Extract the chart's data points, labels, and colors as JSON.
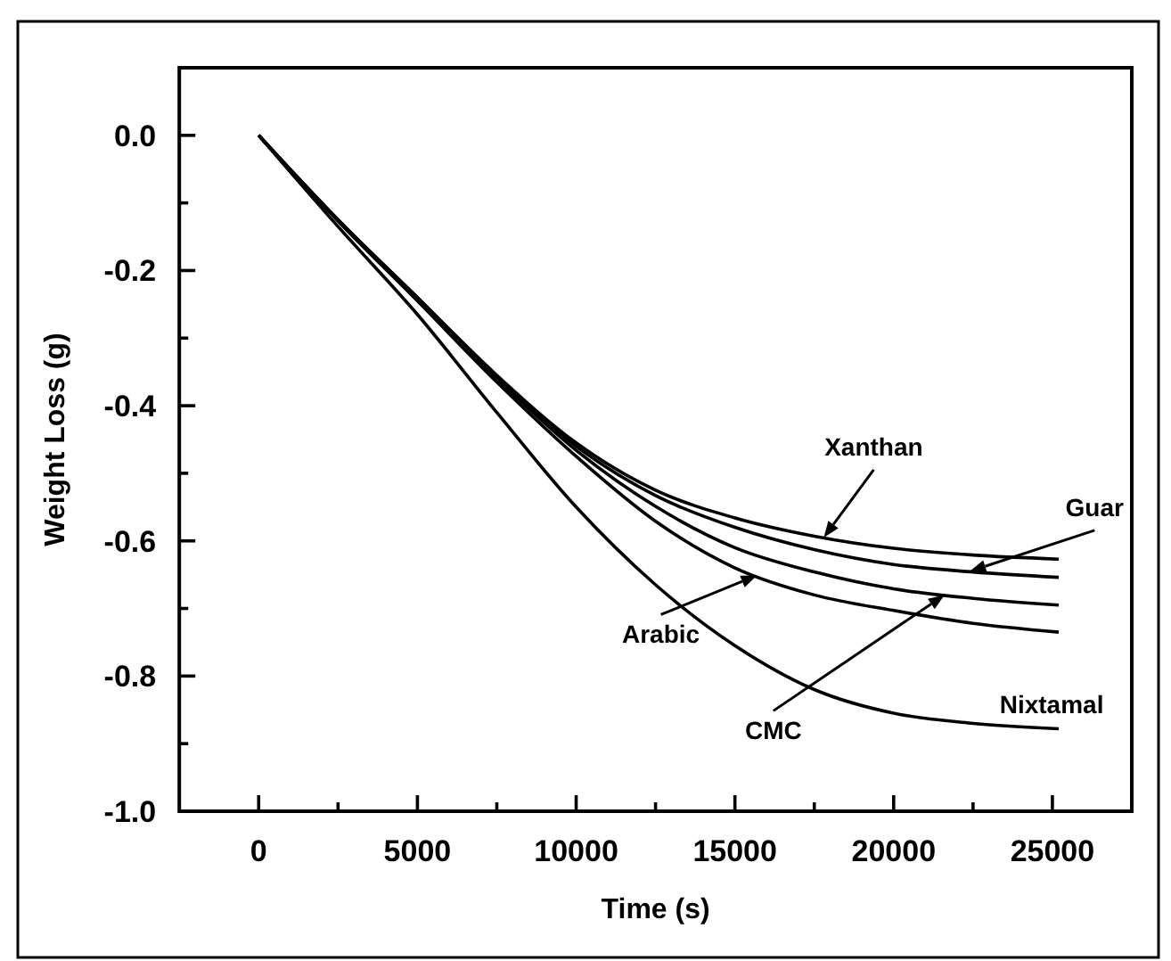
{
  "chart_data": {
    "type": "line",
    "xlabel": "Time (s)",
    "ylabel": "Weight Loss (g)",
    "x": [
      0,
      2500,
      5000,
      7500,
      10000,
      12500,
      15000,
      17500,
      20000,
      22500,
      25200
    ],
    "series": [
      {
        "color": "#000000",
        "values": [
          0,
          -0.125,
          -0.24,
          -0.355,
          -0.455,
          -0.525,
          -0.566,
          -0.593,
          -0.611,
          -0.621,
          -0.627
        ]
      },
      {
        "color": "#000000",
        "values": [
          0,
          -0.125,
          -0.24,
          -0.357,
          -0.46,
          -0.533,
          -0.58,
          -0.613,
          -0.635,
          -0.646,
          -0.654
        ]
      },
      {
        "color": "#000000",
        "values": [
          0,
          -0.126,
          -0.242,
          -0.36,
          -0.466,
          -0.549,
          -0.61,
          -0.646,
          -0.671,
          -0.685,
          -0.695
        ]
      },
      {
        "color": "#000000",
        "values": [
          0,
          -0.127,
          -0.245,
          -0.365,
          -0.475,
          -0.571,
          -0.64,
          -0.68,
          -0.703,
          -0.722,
          -0.735
        ]
      },
      {
        "color": "#000000",
        "values": [
          0,
          -0.135,
          -0.265,
          -0.41,
          -0.55,
          -0.665,
          -0.755,
          -0.82,
          -0.855,
          -0.87,
          -0.878
        ]
      }
    ],
    "xlim": [
      -2500,
      27500
    ],
    "xticks": [
      0,
      {
        "value": 2500,
        "label": null
      },
      5000,
      {
        "value": 7500,
        "label": null
      },
      10000,
      {
        "value": 12500,
        "label": null
      },
      15000,
      {
        "value": 17500,
        "label": null
      },
      20000,
      {
        "value": 22500,
        "label": null
      },
      25000
    ],
    "ylim": [
      -1.0,
      0.1
    ],
    "yticks": [
      {
        "value": -1.0,
        "label": "-1.0"
      },
      {
        "value": -0.9,
        "label": null
      },
      {
        "value": -0.8,
        "label": "-0.8"
      },
      {
        "value": -0.7,
        "label": null
      },
      {
        "value": -0.6,
        "label": "-0.6"
      },
      {
        "value": -0.5,
        "label": null
      },
      {
        "value": -0.4,
        "label": "-0.4"
      },
      {
        "value": -0.3,
        "label": null
      },
      {
        "value": -0.2,
        "label": "-0.2"
      },
      {
        "value": -0.1,
        "label": null
      },
      {
        "value": 0,
        "label": "0.0"
      }
    ],
    "annotations": [
      {
        "text": "Xanthan",
        "x": 17800,
        "y": -0.595
      },
      {
        "text": "Guar",
        "x": 22400,
        "y": -0.645
      },
      {
        "text": "CMC",
        "x": 21600,
        "y": -0.68
      },
      {
        "text": "Arabic",
        "x": 15700,
        "y": -0.651
      },
      {
        "text": "Nixtamal",
        "x": 25200,
        "y": -0.878
      }
    ],
    "grid": false,
    "marker": "none",
    "line_style": "solid"
  }
}
